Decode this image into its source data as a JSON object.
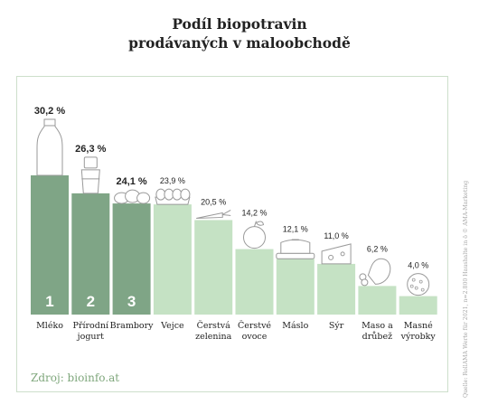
{
  "title_lines": [
    "Podíl biopotravin",
    "prodávaných v maloobchodě"
  ],
  "source": "Zdroj: bioinfo.at",
  "credit": "Quelle: RollAMA Werte für 2021, n=2.800 Haushalte in ö © AMA-Marketing",
  "colors": {
    "top_bar": "#7fa586",
    "bar": "#c5e2c4",
    "rank_number": "#ffffff",
    "frame": "#cddfcb",
    "source": "#7fa77c"
  },
  "chart_data": {
    "type": "bar",
    "title": "Podíl biopotravin prodávaných v maloobchodě",
    "unit": "%",
    "ylim": [
      0,
      35
    ],
    "grid": false,
    "categories": [
      [
        "Mléko"
      ],
      [
        "Přírodní",
        "jogurt"
      ],
      [
        "Brambory"
      ],
      [
        "Vejce"
      ],
      [
        "Čerstvá",
        "zelenina"
      ],
      [
        "Čerstvé",
        "ovoce"
      ],
      [
        "Máslo"
      ],
      [
        "Sýr"
      ],
      [
        "Maso a",
        "drůbež"
      ],
      [
        "Masné",
        "výrobky"
      ]
    ],
    "values": [
      30.2,
      26.3,
      24.1,
      23.9,
      20.5,
      14.2,
      12.1,
      11.0,
      6.2,
      4.0
    ],
    "value_labels": [
      "30,2 %",
      "26,3 %",
      "24,1 %",
      "23,9 %",
      "20,5 %",
      "14,2 %",
      "12,1 %",
      "11,0 %",
      "6,2 %",
      "4,0 %"
    ],
    "highlight_ranks": [
      "1",
      "2",
      "3"
    ],
    "icons": [
      "milk-bottle-icon",
      "yogurt-cup-icon",
      "potatoes-icon",
      "eggs-icon",
      "carrot-icon",
      "apple-icon",
      "butter-dish-icon",
      "cheese-icon",
      "chicken-leg-icon",
      "sausage-slice-icon"
    ]
  }
}
